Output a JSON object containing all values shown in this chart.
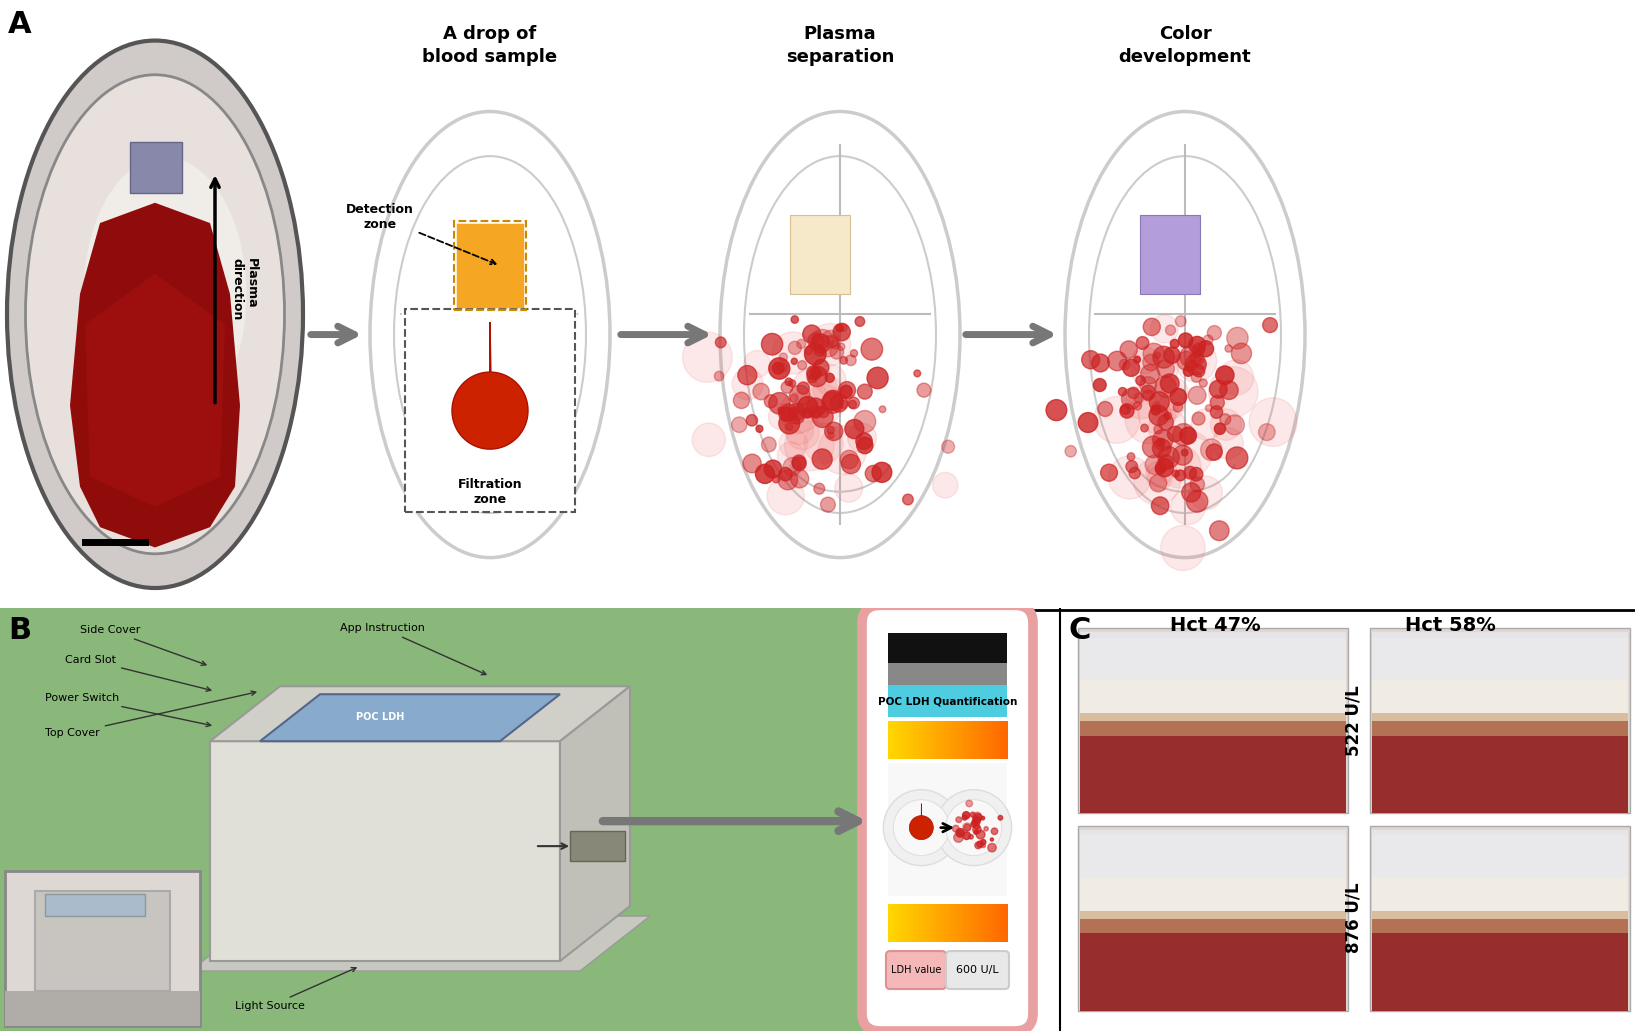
{
  "panel_A_label": "A",
  "panel_B_label": "B",
  "panel_C_label": "C",
  "step1_title": "A drop of\nblood sample",
  "step2_title": "Plasma\nseparation",
  "step3_title": "Color\ndevelopment",
  "detection_zone_label": "Detection\nzone",
  "filtration_zone_label": "Filtration\nzone",
  "plasma_direction_label": "Plasma\ndirection",
  "side_cover_label": "Side Cover",
  "card_slot_label": "Card Slot",
  "power_switch_label": "Power Switch",
  "top_cover_label": "Top Cover",
  "app_instruction_label": "App Instruction",
  "light_source_label": "Light Source",
  "poc_ldh_label": "POC LDH Quantification",
  "ldh_value_label": "LDH value",
  "ldh_value": "600 U/L",
  "hct47_label": "Hct 47%",
  "hct58_label": "Hct 58%",
  "ul522_label": "522 U/L",
  "ul876_label": "876 U/L",
  "bg_green": "#8ab87a",
  "arrow_gray": "#888888",
  "ellipse_gray": "#cccccc",
  "phone_border": "#e8a0a0",
  "bar_black": "#111111",
  "bar_gray": "#888888",
  "bar_cyan": "#4ecde0",
  "phone_mid_section_bg": "#f8f8f8",
  "ldh_btn_color": "#f5b8b8",
  "ldh_val_btn_color": "#e8e8e8",
  "sep_line_color": "#000000",
  "top_bg": "#ffffff",
  "bot_bg": "#ffffff"
}
